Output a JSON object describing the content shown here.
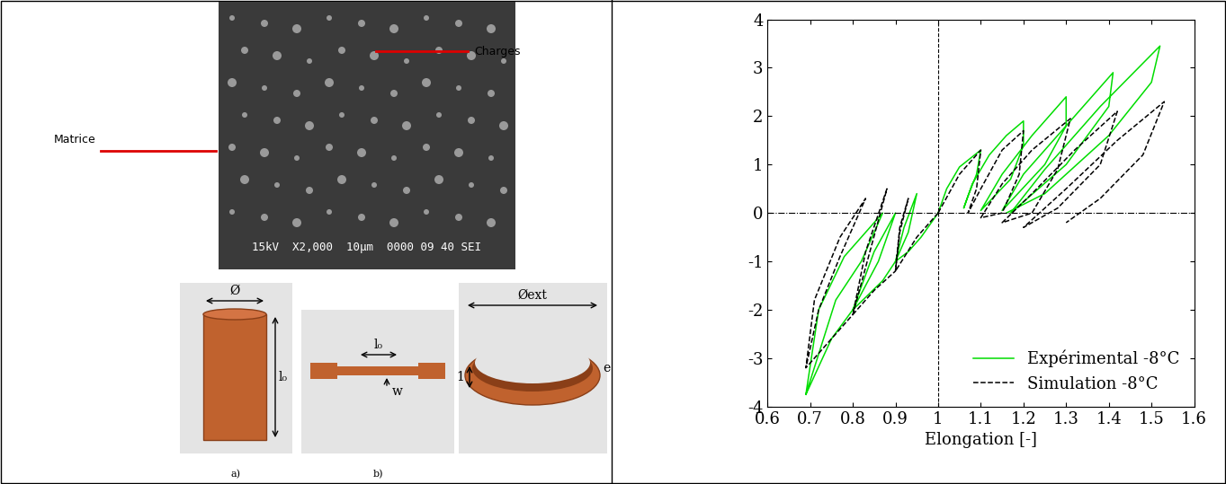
{
  "figure": {
    "sem_image": {
      "matrix_label": "Matrice",
      "filler_label": "Charges",
      "info_bar": "15kV  X2,000  10μm  0000 09 40 SEI"
    },
    "specimens": [
      {
        "caption": "a)",
        "labels": [
          "Ø",
          "l₀"
        ]
      },
      {
        "caption": "b)",
        "labels": [
          "l₀",
          "w"
        ]
      },
      {
        "labels": [
          "Øext",
          "e",
          "1"
        ]
      }
    ]
  },
  "chart_data": {
    "type": "line",
    "x_label": "Elongation [-]",
    "xlim": [
      0.6,
      1.6
    ],
    "xticks": [
      0.6,
      0.7,
      0.8,
      0.9,
      1,
      1.1,
      1.2,
      1.3,
      1.4,
      1.5,
      1.6
    ],
    "ylim": [
      -4,
      4
    ],
    "yticks": [
      -4,
      -3,
      -2,
      -1,
      0,
      1,
      2,
      3,
      4
    ],
    "vlines": [
      1
    ],
    "hlines": [
      0
    ],
    "legend": "lower right",
    "series": [
      {
        "name": "Expérimental -8°C",
        "color": "#00dd00",
        "line_style": "solid",
        "x": [
          1,
          1.02,
          1.05,
          1.1,
          1.09,
          1.07,
          1.06,
          1.08,
          1.12,
          1.16,
          1.2,
          1.2,
          1.17,
          1.1,
          1.15,
          1.22,
          1.3,
          1.3,
          1.25,
          1.15,
          1.2,
          1.3,
          1.41,
          1.4,
          1.3,
          1.17,
          1.25,
          1.38,
          1.52,
          1.5,
          1.4,
          1.25,
          1.16,
          null,
          1,
          0.96,
          0.93,
          0.9,
          0.92,
          0.95,
          0.93,
          0.9,
          0.87,
          0.8,
          0.85,
          0.9,
          0.86,
          0.8,
          0.75,
          0.69,
          0.72,
          0.78,
          0.87,
          0.82,
          0.76,
          0.69
        ],
        "values": [
          0,
          0.5,
          0.95,
          1.3,
          0.8,
          0.35,
          0.1,
          0.6,
          1.2,
          1.6,
          1.9,
          1.4,
          0.7,
          0.05,
          0.8,
          1.6,
          2.4,
          1.8,
          1.0,
          0.05,
          0.8,
          1.8,
          2.9,
          2.2,
          1.0,
          0.0,
          0.9,
          2.2,
          3.45,
          2.7,
          1.6,
          0.4,
          0.0,
          null,
          0,
          -0.5,
          -0.8,
          -1.0,
          -0.3,
          0.4,
          -0.4,
          -1.0,
          -1.4,
          -2.0,
          -0.8,
          0.0,
          -1.0,
          -2.0,
          -2.6,
          -3.75,
          -2.0,
          -0.9,
          0.0,
          -1.0,
          -1.8,
          -3.75
        ]
      },
      {
        "name": "Simulation -8°C",
        "color": "#000000",
        "line_style": "dashed",
        "x": [
          1,
          1.05,
          1.1,
          1.09,
          1.07,
          1.1,
          1.15,
          1.2,
          1.19,
          1.15,
          1.1,
          1.15,
          1.22,
          1.31,
          1.28,
          1.22,
          1.15,
          1.22,
          1.32,
          1.42,
          1.38,
          1.28,
          1.2,
          1.3,
          1.42,
          1.53,
          1.48,
          1.38,
          1.3,
          null,
          1,
          0.95,
          0.9,
          0.91,
          0.93,
          0.91,
          0.9,
          0.85,
          0.8,
          0.83,
          0.88,
          0.84,
          0.8,
          0.75,
          0.69,
          0.71,
          0.77,
          0.83,
          0.77,
          0.72,
          0.69
        ],
        "values": [
          0,
          0.8,
          1.3,
          0.5,
          0.0,
          0.5,
          1.3,
          1.7,
          0.8,
          0.0,
          -0.1,
          0.6,
          1.3,
          1.95,
          0.9,
          0.0,
          -0.2,
          0.4,
          1.3,
          2.1,
          1.0,
          0.1,
          -0.3,
          0.5,
          1.5,
          2.3,
          1.2,
          0.3,
          -0.2,
          null,
          0,
          -0.5,
          -1.2,
          -0.4,
          0.3,
          -0.3,
          -1.2,
          -1.6,
          -2.1,
          -0.8,
          0.5,
          -0.8,
          -2.1,
          -2.6,
          -3.2,
          -1.8,
          -0.5,
          0.3,
          -0.9,
          -2.0,
          -3.2
        ]
      }
    ]
  }
}
